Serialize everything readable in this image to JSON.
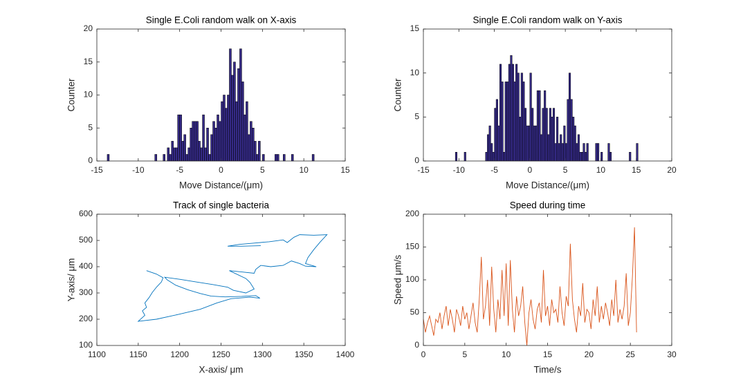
{
  "chart_data": [
    {
      "type": "histogram",
      "title": "Single E.Coli random walk on X-axis",
      "xlabel": "Move Distance/(μm)",
      "ylabel": "Counter",
      "color": "#352a87",
      "bins": [
        -13.75,
        -13.5,
        -13.25,
        -13,
        -12.75,
        -12.5,
        -12.25,
        -12,
        -11.75,
        -11.5,
        -11.25,
        -11,
        -10.75,
        -10.5,
        -10.25,
        -10,
        -9.75,
        -9.5,
        -9.25,
        -9,
        -8.75,
        -8.5,
        -8.25,
        -8,
        -7.75,
        -7.5,
        -7.25,
        -7,
        -6.75,
        -6.5,
        -6.25,
        -6,
        -5.75,
        -5.5,
        -5.25,
        -5,
        -4.75,
        -4.5,
        -4.25,
        -4,
        -3.75,
        -3.5,
        -3.25,
        -3,
        -2.75,
        -2.5,
        -2.25,
        -2,
        -1.75,
        -1.5,
        -1.25,
        -1,
        -0.75,
        -0.5,
        -0.25,
        0,
        0.25,
        0.5,
        0.75,
        1,
        1.25,
        1.5,
        1.75,
        2,
        2.25,
        2.5,
        2.75,
        3,
        3.25,
        3.5,
        3.75,
        4,
        4.25,
        4.5,
        4.75,
        5,
        5.25,
        5.5,
        5.75,
        6,
        6.25,
        6.5,
        6.75,
        7,
        7.25,
        7.5,
        7.75,
        8,
        8.25,
        8.5,
        8.75,
        9,
        9.25,
        9.5,
        9.75,
        10,
        10.25,
        10.5,
        10.75,
        11,
        11.25,
        11.5
      ],
      "values": [
        1,
        0,
        0,
        0,
        0,
        0,
        0,
        0,
        0,
        0,
        0,
        0,
        0,
        0,
        0,
        0,
        0,
        0,
        0,
        0,
        0,
        0,
        0,
        1,
        0,
        0,
        0,
        1,
        0,
        2,
        1,
        3,
        2,
        2,
        7,
        7,
        3,
        4,
        1,
        2,
        5,
        6,
        6,
        6,
        3,
        2,
        7,
        2,
        5,
        1,
        4,
        6,
        5,
        7,
        6,
        9,
        10,
        8,
        10,
        17,
        13,
        15,
        9,
        14,
        17,
        12,
        7,
        9,
        4,
        6,
        5,
        3,
        1,
        3,
        0,
        1,
        0,
        0,
        0,
        0,
        0,
        1,
        1,
        0,
        0,
        1,
        0,
        0,
        0,
        1,
        0,
        0,
        0,
        0,
        0,
        0,
        0,
        0,
        0,
        1,
        0
      ],
      "xlim": [
        -15,
        15
      ],
      "xticks": [
        -15,
        -10,
        -5,
        0,
        5,
        10,
        15
      ],
      "ylim": [
        0,
        20
      ],
      "yticks": [
        0,
        5,
        10,
        15,
        20
      ]
    },
    {
      "type": "histogram",
      "title": "Single E.Coli random walk on Y-axis",
      "xlabel": "Move Distance/(μm)",
      "ylabel": "Counter",
      "color": "#352a87",
      "bins": [
        -10.5,
        -10.25,
        -10,
        -9.75,
        -9.5,
        -9.25,
        -9,
        -8.75,
        -8.5,
        -8.25,
        -8,
        -7.75,
        -7.5,
        -7.25,
        -7,
        -6.75,
        -6.5,
        -6.25,
        -6,
        -5.75,
        -5.5,
        -5.25,
        -5,
        -4.75,
        -4.5,
        -4.25,
        -4,
        -3.75,
        -3.5,
        -3.25,
        -3,
        -2.75,
        -2.5,
        -2.25,
        -2,
        -1.75,
        -1.5,
        -1.25,
        -1,
        -0.75,
        -0.5,
        -0.25,
        0,
        0.25,
        0.5,
        0.75,
        1,
        1.25,
        1.5,
        1.75,
        2,
        2.25,
        2.5,
        2.75,
        3,
        3.25,
        3.5,
        3.75,
        4,
        4.25,
        4.5,
        4.75,
        5,
        5.25,
        5.5,
        5.75,
        6,
        6.25,
        6.5,
        6.75,
        7,
        7.25,
        7.5,
        7.75,
        8,
        8.25,
        8.5,
        8.75,
        9,
        9.25,
        9.5,
        9.75,
        10,
        10.25,
        10.5,
        10.75,
        11,
        11.25,
        11.5,
        11.75,
        12,
        12.25,
        12.5,
        12.75,
        13,
        13.25,
        13.5,
        13.75,
        14,
        14.25,
        14.5,
        14.75,
        15,
        15.25,
        15.5
      ],
      "values": [
        1,
        0,
        0,
        0,
        0,
        1,
        0,
        0,
        0,
        0,
        0,
        0,
        0,
        0,
        0,
        0,
        0,
        1,
        3,
        4,
        2,
        1,
        6,
        7,
        4,
        11,
        9,
        1,
        9,
        9,
        11,
        12,
        11,
        9,
        11,
        10,
        5,
        10,
        9,
        6,
        4,
        4,
        10,
        6,
        4,
        4,
        8,
        8,
        3,
        6,
        8,
        6,
        3,
        6,
        5,
        6,
        2,
        5,
        2,
        3,
        2,
        4,
        2,
        7,
        10,
        7,
        5,
        4,
        2,
        3,
        1,
        1,
        2,
        1,
        2,
        0,
        0,
        0,
        0,
        2,
        2,
        0,
        1,
        0,
        0,
        0,
        2,
        1,
        0,
        0,
        0,
        0,
        0,
        0,
        0,
        0,
        0,
        0,
        1,
        0,
        0,
        0,
        2,
        0
      ],
      "xlim": [
        -15,
        20
      ],
      "xticks": [
        -15,
        -10,
        -5,
        0,
        5,
        10,
        15,
        20
      ],
      "ylim": [
        0,
        15
      ],
      "yticks": [
        0,
        5,
        10,
        15
      ]
    },
    {
      "type": "line",
      "title": "Track of single bacteria",
      "xlabel": "X-axis/ μm",
      "ylabel": "Y-axis/ μm",
      "color": "#0072bd",
      "x": [
        1160,
        1172,
        1180,
        1178,
        1172,
        1167,
        1163,
        1158,
        1160,
        1155,
        1158,
        1150,
        1172,
        1198,
        1225,
        1245,
        1262,
        1285,
        1297,
        1292,
        1275,
        1255,
        1238,
        1225,
        1210,
        1195,
        1185,
        1182,
        1200,
        1220,
        1240,
        1258,
        1265,
        1280,
        1290,
        1285,
        1280,
        1260,
        1275,
        1290,
        1292,
        1298,
        1310,
        1325,
        1335,
        1345,
        1352,
        1365,
        1352,
        1355,
        1362,
        1370,
        1378,
        1362,
        1345,
        1338,
        1330,
        1325,
        1308,
        1290,
        1272,
        1258,
        1275,
        1298
      ],
      "values": [
        385,
        372,
        358,
        342,
        322,
        302,
        282,
        262,
        245,
        232,
        215,
        192,
        200,
        218,
        238,
        262,
        278,
        284,
        280,
        290,
        287,
        285,
        288,
        298,
        312,
        330,
        350,
        360,
        352,
        342,
        332,
        322,
        310,
        300,
        315,
        340,
        355,
        385,
        380,
        375,
        390,
        405,
        400,
        405,
        422,
        412,
        402,
        400,
        412,
        435,
        465,
        495,
        522,
        520,
        522,
        512,
        492,
        502,
        495,
        490,
        485,
        478,
        478,
        480
      ],
      "xlim": [
        1100,
        1400
      ],
      "xticks": [
        1100,
        1150,
        1200,
        1250,
        1300,
        1350,
        1400
      ],
      "ylim": [
        100,
        600
      ],
      "yticks": [
        100,
        200,
        300,
        400,
        500,
        600
      ]
    },
    {
      "type": "line",
      "title": "Speed during time",
      "xlabel": "Time/s",
      "ylabel": "Speed μm/s",
      "color": "#d95319",
      "x": [
        0,
        0.25,
        0.5,
        0.75,
        1,
        1.25,
        1.5,
        1.75,
        2,
        2.25,
        2.5,
        2.75,
        3,
        3.25,
        3.5,
        3.75,
        4,
        4.25,
        4.5,
        4.75,
        5,
        5.25,
        5.5,
        5.75,
        6,
        6.25,
        6.5,
        6.75,
        7,
        7.25,
        7.5,
        7.75,
        8,
        8.25,
        8.5,
        8.75,
        9,
        9.25,
        9.5,
        9.75,
        10,
        10.25,
        10.5,
        10.75,
        11,
        11.25,
        11.5,
        11.75,
        12,
        12.25,
        12.5,
        12.75,
        13,
        13.25,
        13.5,
        13.75,
        14,
        14.25,
        14.5,
        14.75,
        15,
        15.25,
        15.5,
        15.75,
        16,
        16.25,
        16.5,
        16.75,
        17,
        17.25,
        17.5,
        17.75,
        18,
        18.25,
        18.5,
        18.75,
        19,
        19.25,
        19.5,
        19.75,
        20,
        20.25,
        20.5,
        20.75,
        21,
        21.25,
        21.5,
        21.75,
        22,
        22.25,
        22.5,
        22.75,
        23,
        23.25,
        23.5,
        23.75,
        24,
        24.25,
        24.5,
        24.75,
        25,
        25.25,
        25.5,
        25.75
      ],
      "values": [
        40,
        20,
        35,
        45,
        30,
        15,
        40,
        35,
        50,
        25,
        45,
        60,
        30,
        55,
        40,
        20,
        55,
        45,
        30,
        60,
        40,
        50,
        25,
        45,
        65,
        35,
        20,
        70,
        135,
        40,
        60,
        100,
        30,
        120,
        55,
        20,
        70,
        40,
        115,
        45,
        125,
        30,
        130,
        55,
        20,
        75,
        45,
        60,
        90,
        35,
        0,
        50,
        70,
        40,
        25,
        55,
        65,
        35,
        115,
        45,
        60,
        30,
        70,
        50,
        55,
        35,
        90,
        50,
        30,
        75,
        60,
        155,
        70,
        40,
        20,
        60,
        45,
        95,
        35,
        55,
        50,
        25,
        70,
        45,
        90,
        35,
        60,
        40,
        65,
        50,
        30,
        70,
        45,
        100,
        35,
        55,
        40,
        60,
        110,
        30,
        50,
        105,
        180,
        20
      ],
      "xlim": [
        0,
        30
      ],
      "xticks": [
        0,
        5,
        10,
        15,
        20,
        25,
        30
      ],
      "ylim": [
        0,
        200
      ],
      "yticks": [
        0,
        50,
        100,
        150,
        200
      ]
    }
  ]
}
